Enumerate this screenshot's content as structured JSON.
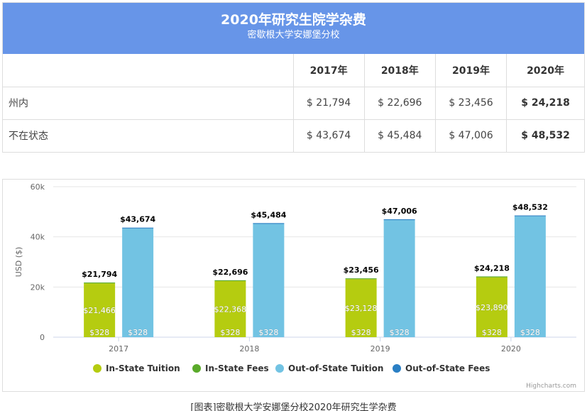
{
  "header": {
    "title": "2020年研究生院学杂费",
    "subtitle": "密歇根大学安娜堡分校"
  },
  "table": {
    "columns": [
      "2017年",
      "2018年",
      "2019年",
      "2020年"
    ],
    "rows": [
      {
        "label": "州内",
        "values": [
          "$ 21,794",
          "$ 22,696",
          "$ 23,456",
          "$ 24,218"
        ]
      },
      {
        "label": "不在状态",
        "values": [
          "$ 43,674",
          "$ 45,484",
          "$ 47,006",
          "$ 48,532"
        ]
      }
    ]
  },
  "colors": {
    "header_bg": "#6795e8",
    "in_state_tuition": "#b5cc10",
    "in_state_fees": "#5aaa2a",
    "out_state_tuition": "#72c3e3",
    "out_state_fees": "#2a7fc4"
  },
  "chart_data": {
    "type": "bar",
    "stacked": true,
    "categories": [
      "2017",
      "2018",
      "2019",
      "2020"
    ],
    "ylabel": "USD ($)",
    "ylim": [
      0,
      60000
    ],
    "yticks": [
      0,
      20000,
      40000,
      60000
    ],
    "ytick_labels": [
      "0",
      "20k",
      "40k",
      "60k"
    ],
    "grid": true,
    "legend_position": "bottom",
    "series": [
      {
        "name": "In-State Tuition",
        "stack": "in",
        "values": [
          21466,
          22368,
          23128,
          23890
        ],
        "labels": [
          "$21,466",
          "$22,368",
          "$23,128",
          "$23,890"
        ]
      },
      {
        "name": "In-State Fees",
        "stack": "in",
        "values": [
          328,
          328,
          328,
          328
        ],
        "labels": [
          "$328",
          "$328",
          "$328",
          "$328"
        ]
      },
      {
        "name": "Out-of-State Tuition",
        "stack": "out",
        "values": [
          43346,
          45156,
          46678,
          48204
        ],
        "labels": [
          "",
          "",
          "",
          ""
        ]
      },
      {
        "name": "Out-of-State Fees",
        "stack": "out",
        "values": [
          328,
          328,
          328,
          328
        ],
        "labels": [
          "$328",
          "$328",
          "$328",
          "$328"
        ]
      }
    ],
    "totals": {
      "in": [
        "$21,794",
        "$22,696",
        "$23,456",
        "$24,218"
      ],
      "out": [
        "$43,674",
        "$45,484",
        "$47,006",
        "$48,532"
      ]
    },
    "credits": "Highcharts.com"
  },
  "caption": "[图表]密歇根大学安娜堡分校2020年研究生学杂费"
}
